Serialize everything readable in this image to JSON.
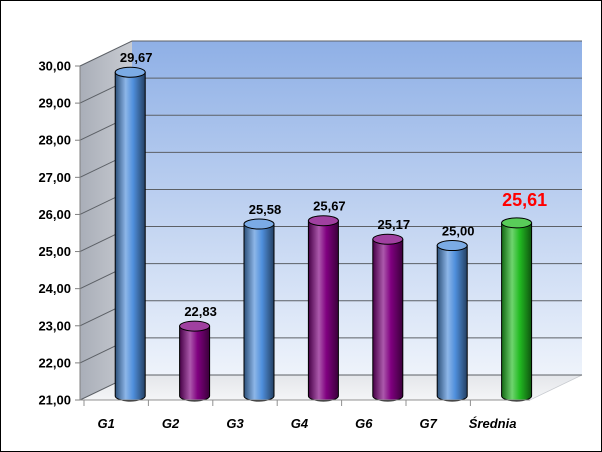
{
  "chart_data": {
    "type": "bar",
    "title": "",
    "xlabel": "",
    "ylabel": "",
    "categories": [
      "G1",
      "G2",
      "G3",
      "G4",
      "G6",
      "G7",
      "Średnia"
    ],
    "values": [
      29.67,
      22.83,
      25.58,
      25.67,
      25.17,
      25.0,
      25.61
    ],
    "data_labels": [
      "29,67",
      "22,83",
      "25,58",
      "25,67",
      "25,17",
      "25,00",
      "25,61"
    ],
    "ylim": [
      21,
      30
    ],
    "yticks": [
      "21,00",
      "22,00",
      "23,00",
      "24,00",
      "25,00",
      "26,00",
      "27,00",
      "28,00",
      "29,00",
      "30,00"
    ],
    "grid": true,
    "legend": "none",
    "style": "3d-cylinder",
    "colors": {
      "G1": "#4f8fdc",
      "G2": "#800080",
      "G3": "#4f8fdc",
      "G4": "#800080",
      "G6": "#800080",
      "G7": "#4f8fdc",
      "Średnia": "#22bb22"
    },
    "highlight": {
      "category": "Średnia",
      "label_color": "#ff0000"
    }
  }
}
